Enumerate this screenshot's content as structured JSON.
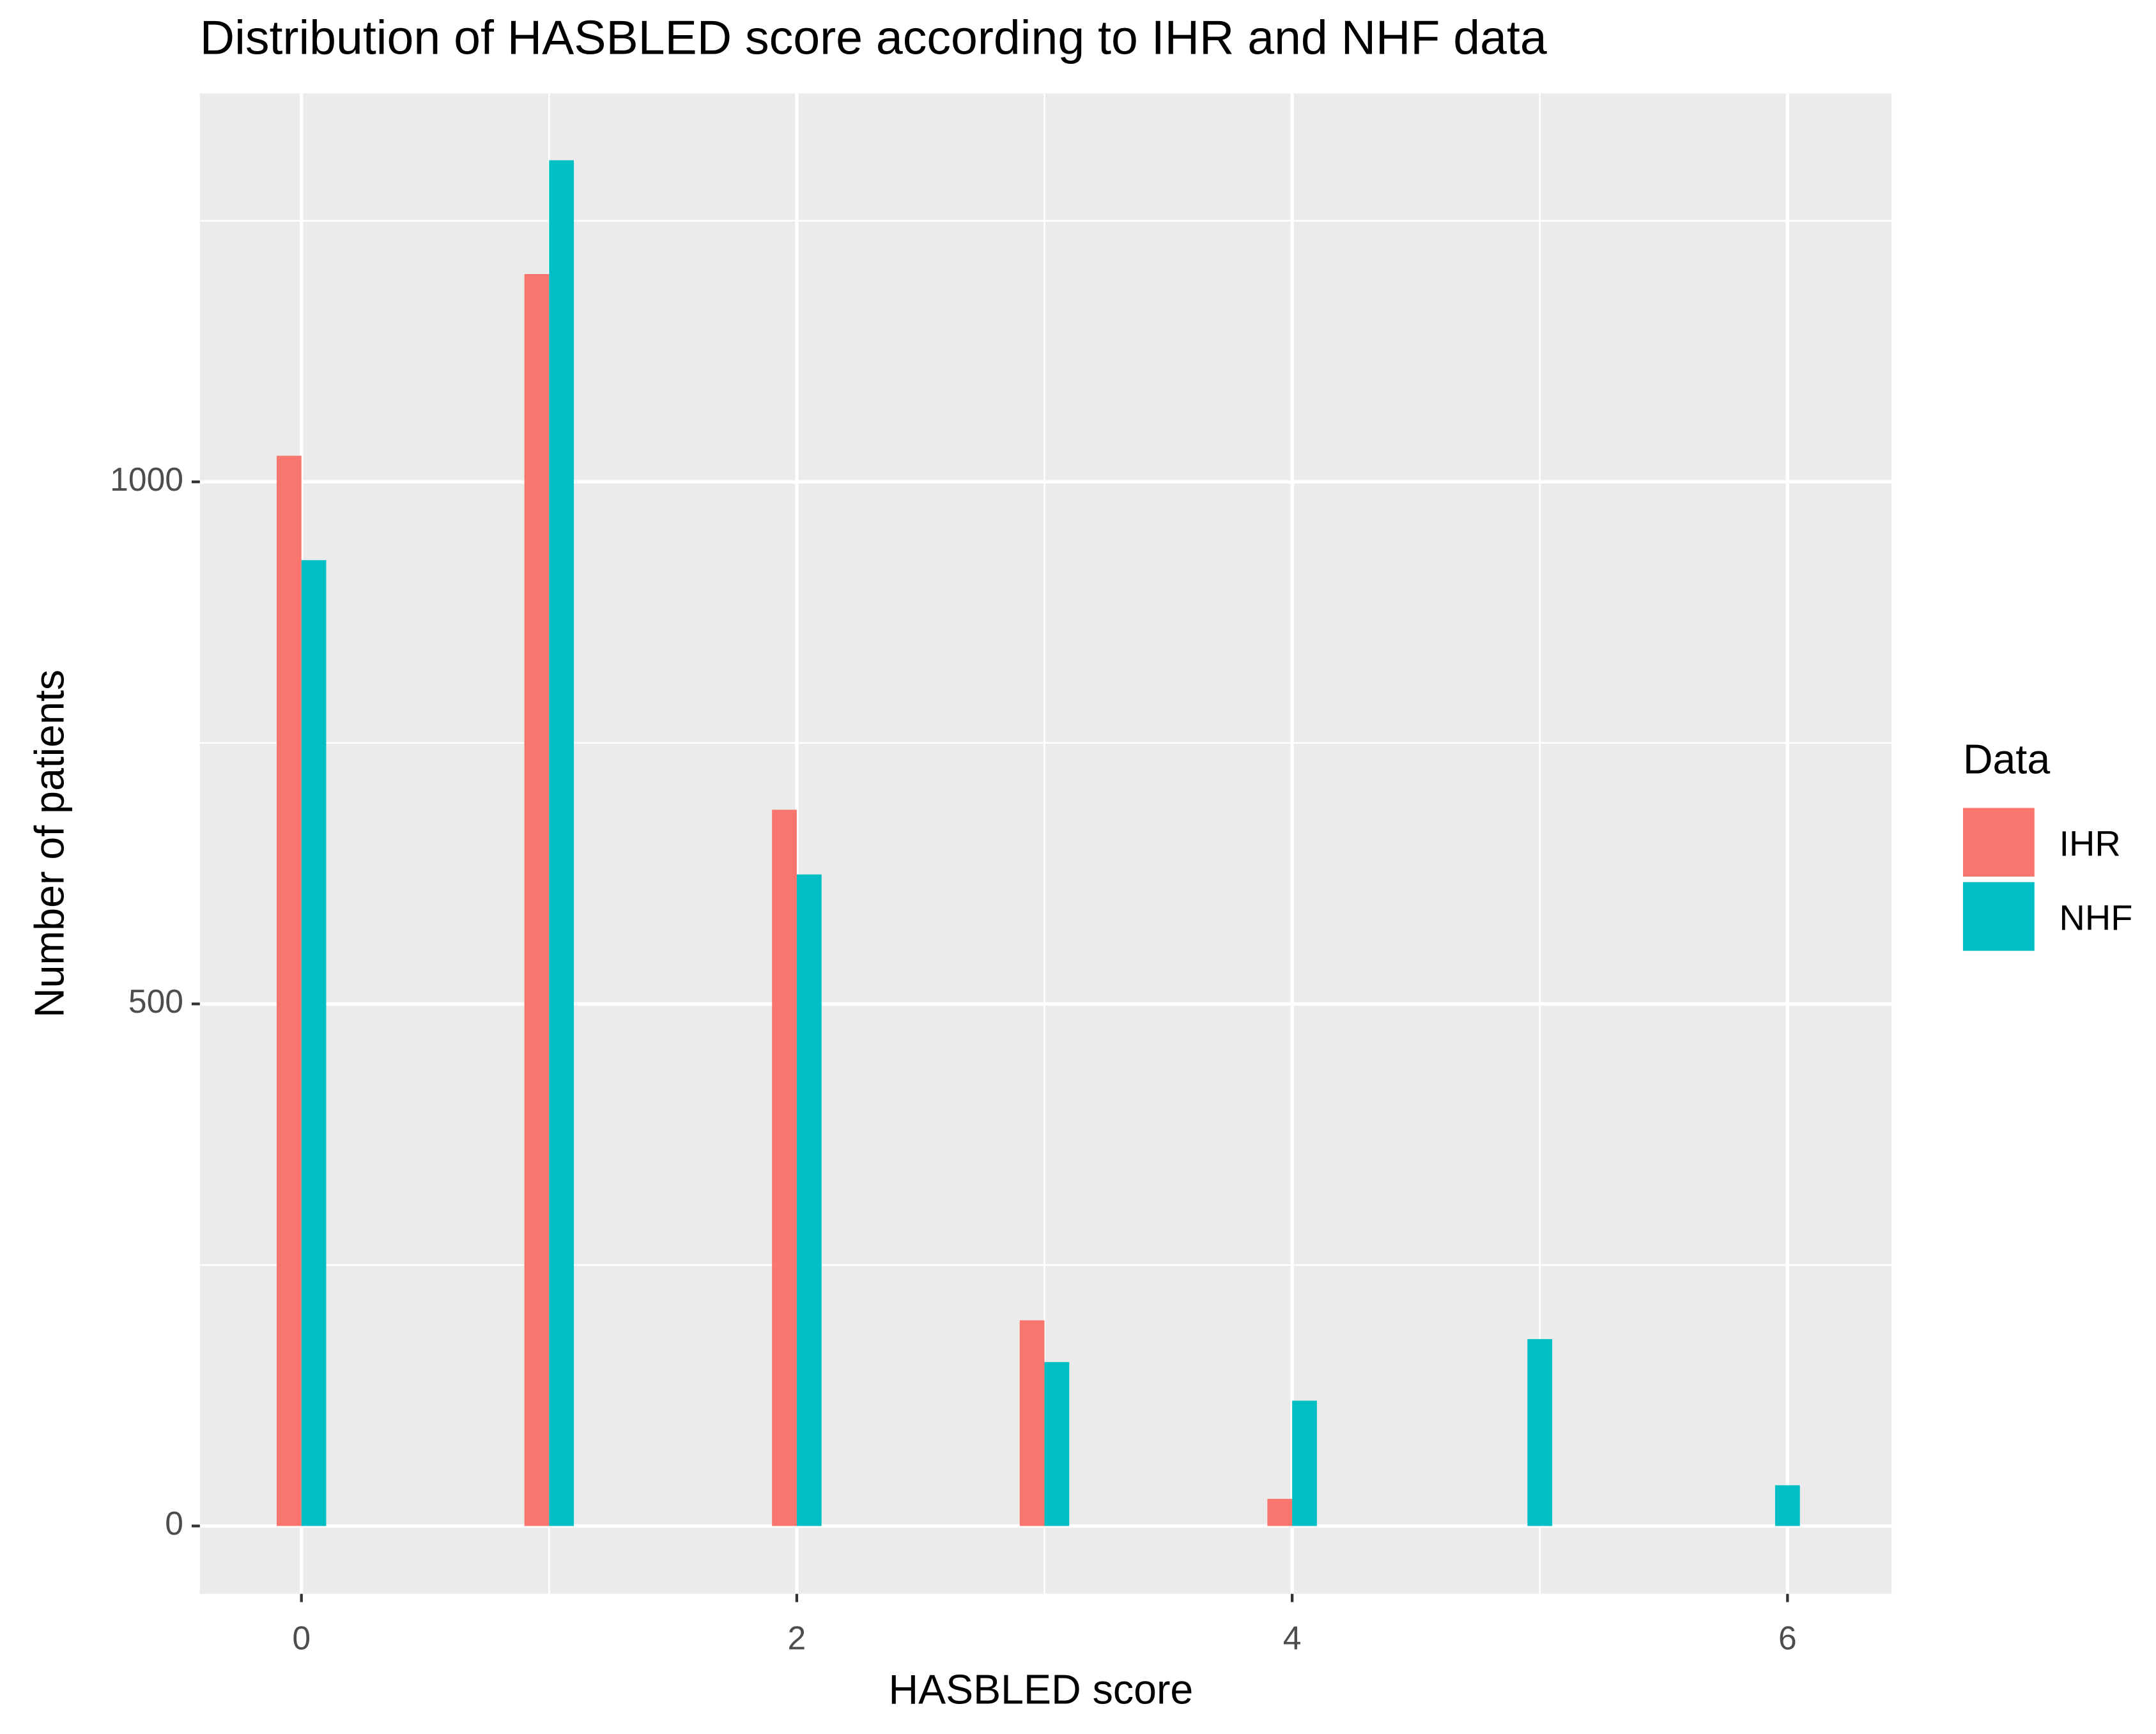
{
  "chart_data": {
    "type": "bar",
    "title": "Distribution of HASBLED score according to IHR and NHF data",
    "x_label": "HASBLED score",
    "y_label": "Number of patients",
    "x": [
      0,
      1,
      2,
      3,
      4,
      5,
      6
    ],
    "series": [
      {
        "name": "IHR",
        "color": "#F8766D",
        "values": [
          1025,
          1199,
          686,
          197,
          26,
          null,
          null
        ]
      },
      {
        "name": "NHF",
        "color": "#00BFC4",
        "values": [
          925,
          1308,
          624,
          157,
          120,
          179,
          39
        ]
      }
    ],
    "legend_title": "Data",
    "legend": "right",
    "xlim": [
      -0.41,
      6.42
    ],
    "xticks": [
      0,
      2,
      4,
      6
    ],
    "xminor": [
      1,
      3,
      5
    ],
    "ylim": [
      -65,
      1372
    ],
    "yticks": [
      0,
      500,
      1000
    ],
    "yminor": [
      250,
      750,
      1250
    ],
    "grid": true
  }
}
